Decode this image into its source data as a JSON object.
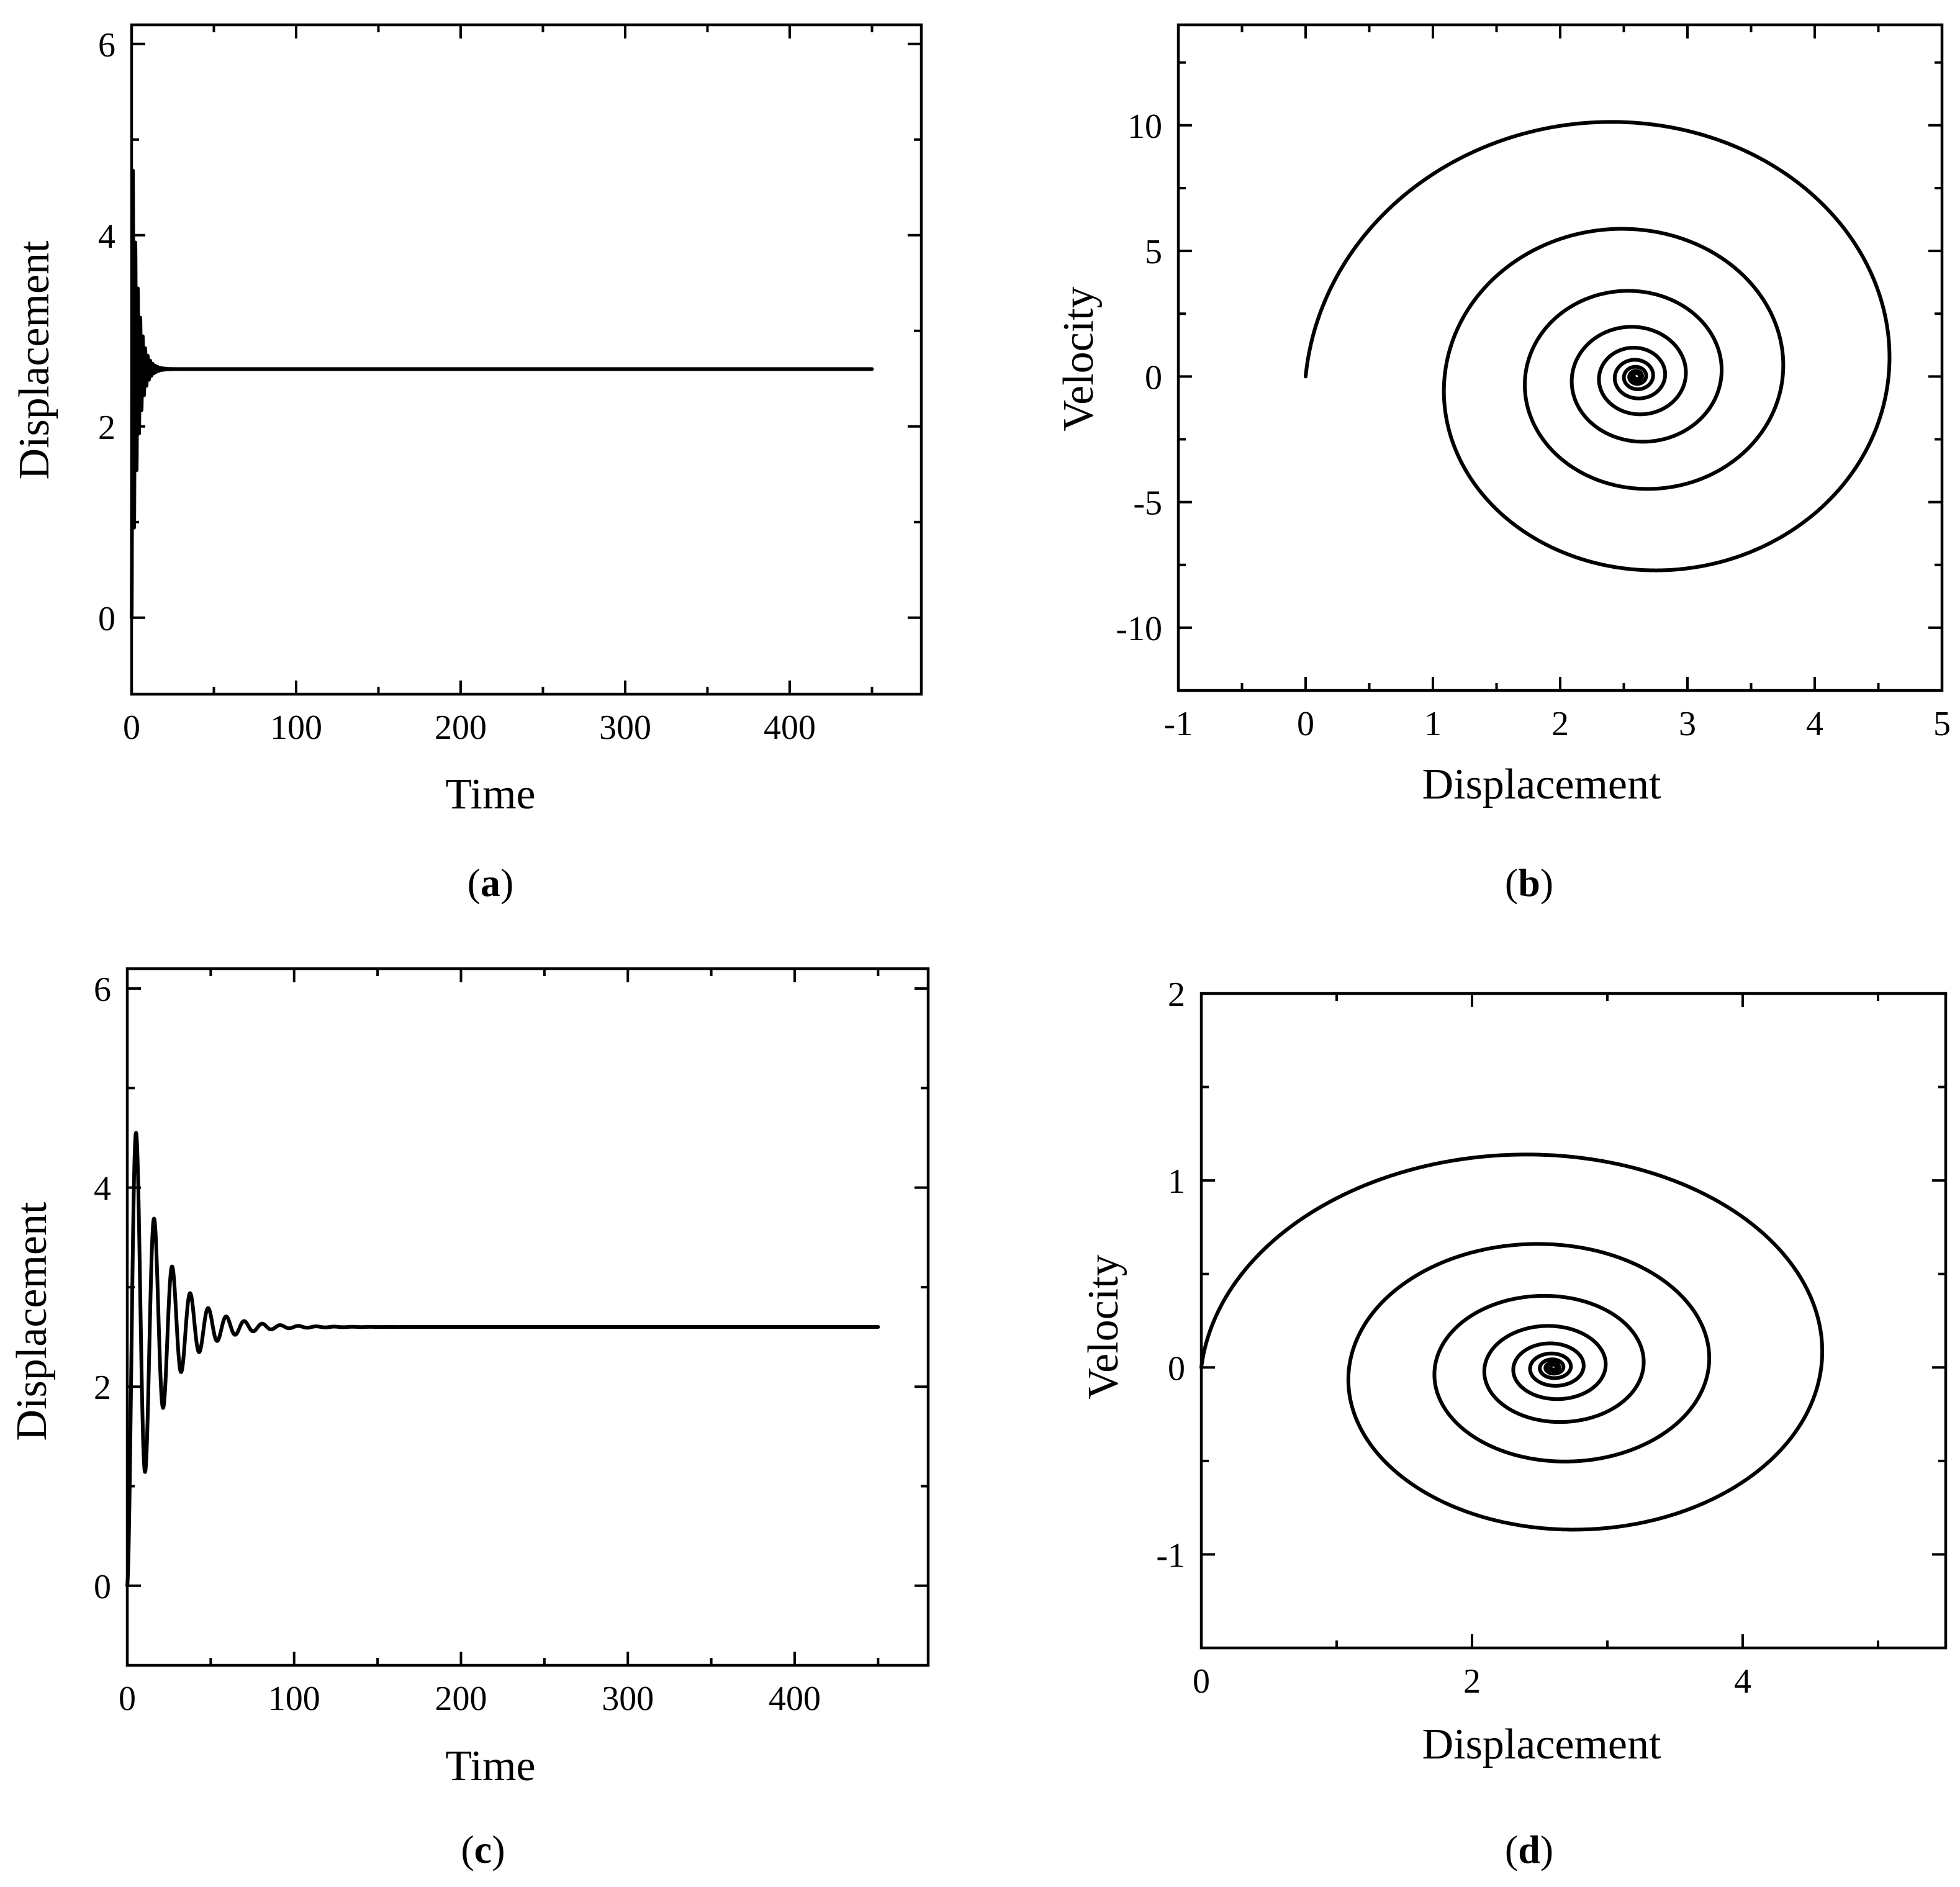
{
  "chart_data": [
    {
      "id": "a",
      "type": "line",
      "panel_label": "a",
      "xlabel": "Time",
      "ylabel": "Displacement",
      "xlim": [
        0,
        480
      ],
      "ylim": [
        -0.8,
        6.2
      ],
      "xticks": [
        0,
        100,
        200,
        300,
        400
      ],
      "yticks": [
        0,
        2,
        4,
        6
      ],
      "xtick_labels": [
        "0",
        "100",
        "200",
        "300",
        "400"
      ],
      "ytick_labels": [
        "0",
        "2",
        "4",
        "6"
      ],
      "x_minor": 50,
      "y_minor": 1,
      "series": [
        {
          "name": "displacement",
          "kind": "damped",
          "equilibrium": 2.6,
          "amplitude": -2.6,
          "period": 1.5,
          "decay": 0.3,
          "t_start": 0,
          "t_end": 450
        }
      ]
    },
    {
      "id": "b",
      "type": "line",
      "panel_label": "b",
      "xlabel": "Displacement",
      "ylabel": "Velocity",
      "xlim": [
        -1,
        5
      ],
      "ylim": [
        -12.5,
        14
      ],
      "xticks": [
        -1,
        0,
        1,
        2,
        3,
        4,
        5
      ],
      "yticks": [
        -10,
        -5,
        0,
        5,
        10
      ],
      "xtick_labels": [
        "-1",
        "0",
        "1",
        "2",
        "3",
        "4",
        "5"
      ],
      "ytick_labels": [
        "-10",
        "-5",
        "0",
        "5",
        "10"
      ],
      "x_minor": 0.5,
      "y_minor": 2.5,
      "series": [
        {
          "name": "phase trajectory",
          "kind": "spiral",
          "center": [
            2.6,
            0
          ],
          "r0": 2.6,
          "ratio": 0.58,
          "velocity_scale": 4.45,
          "turns": 9
        }
      ]
    },
    {
      "id": "c",
      "type": "line",
      "panel_label": "c",
      "xlabel": "Time",
      "ylabel": "Displacement",
      "xlim": [
        0,
        480
      ],
      "ylim": [
        -0.8,
        6.2
      ],
      "xticks": [
        0,
        100,
        200,
        300,
        400
      ],
      "yticks": [
        0,
        2,
        4,
        6
      ],
      "xtick_labels": [
        "0",
        "100",
        "200",
        "300",
        "400"
      ],
      "ytick_labels": [
        "0",
        "2",
        "4",
        "6"
      ],
      "x_minor": 50,
      "y_minor": 1,
      "series": [
        {
          "name": "displacement",
          "kind": "damped",
          "equilibrium": 2.6,
          "amplitude": -2.6,
          "period": 10.8,
          "decay": 0.054,
          "t_start": 0,
          "t_end": 450
        }
      ]
    },
    {
      "id": "d",
      "type": "line",
      "panel_label": "d",
      "xlabel": "Displacement",
      "ylabel": "Velocity",
      "xlim": [
        0,
        5.5
      ],
      "ylim": [
        -1.5,
        2
      ],
      "xticks": [
        0,
        2,
        4
      ],
      "yticks": [
        -1,
        0,
        1,
        2
      ],
      "xtick_labels": [
        "0",
        "2",
        "4"
      ],
      "ytick_labels": [
        "-1",
        "0",
        "1",
        "2"
      ],
      "x_minor": 1,
      "y_minor": 0.5,
      "series": [
        {
          "name": "phase trajectory",
          "kind": "spiral",
          "center": [
            2.6,
            0
          ],
          "r0": 2.6,
          "ratio": 0.58,
          "velocity_scale": 0.5,
          "turns": 9
        }
      ]
    }
  ]
}
